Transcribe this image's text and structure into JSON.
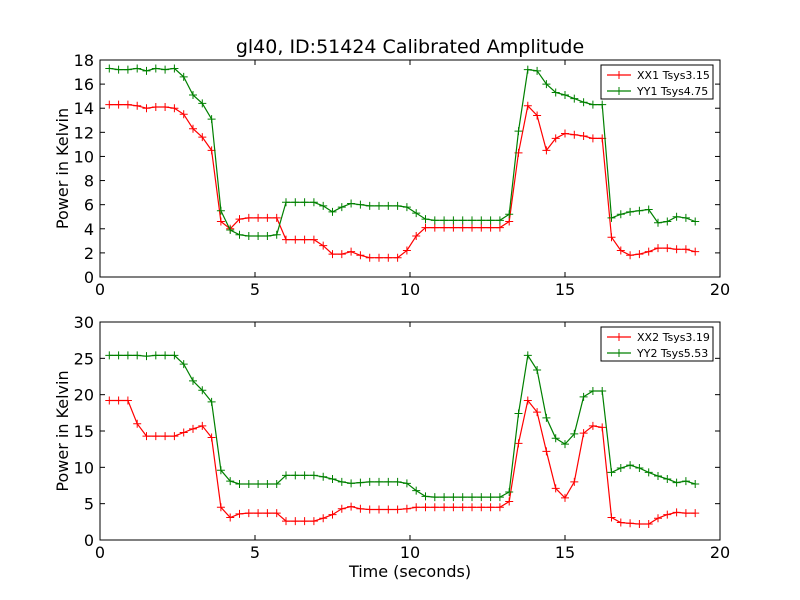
{
  "figure": {
    "title": "gl40, ID:51424 Calibrated Amplitude",
    "xlabel": "Time (seconds)"
  },
  "chart_data": [
    {
      "type": "line",
      "title": "gl40, ID:51424 Calibrated Amplitude",
      "xlabel": "",
      "ylabel": "Power in Kelvin",
      "xlim": [
        0,
        20
      ],
      "ylim": [
        0,
        18
      ],
      "xticks": [
        0,
        5,
        10,
        15,
        20
      ],
      "yticks": [
        0,
        2,
        4,
        6,
        8,
        10,
        12,
        14,
        16,
        18
      ],
      "grid": false,
      "legend_position": "top-right",
      "series": [
        {
          "name": "XX1 Tsys3.15",
          "color": "#ff0000",
          "x": [
            0.3,
            0.6,
            0.9,
            1.2,
            1.5,
            1.8,
            2.1,
            2.4,
            2.7,
            3.0,
            3.3,
            3.6,
            3.9,
            4.2,
            4.5,
            4.8,
            5.1,
            5.4,
            5.7,
            6.0,
            6.3,
            6.6,
            6.9,
            7.2,
            7.5,
            7.8,
            8.1,
            8.4,
            8.7,
            9.0,
            9.3,
            9.6,
            9.9,
            10.2,
            10.5,
            10.8,
            11.1,
            11.4,
            11.7,
            12.0,
            12.3,
            12.6,
            12.9,
            13.2,
            13.5,
            13.8,
            14.1,
            14.4,
            14.7,
            15.0,
            15.3,
            15.6,
            15.9,
            16.2,
            16.5,
            16.8,
            17.1,
            17.4,
            17.7,
            18.0,
            18.3,
            18.6,
            18.9,
            19.2
          ],
          "y": [
            14.3,
            14.3,
            14.3,
            14.2,
            14.0,
            14.1,
            14.1,
            14.0,
            13.5,
            12.3,
            11.6,
            10.5,
            4.6,
            4.0,
            4.8,
            4.9,
            4.9,
            4.9,
            4.9,
            3.1,
            3.1,
            3.1,
            3.1,
            2.6,
            1.9,
            1.9,
            2.1,
            1.8,
            1.6,
            1.6,
            1.6,
            1.6,
            2.2,
            3.4,
            4.1,
            4.1,
            4.1,
            4.1,
            4.1,
            4.1,
            4.1,
            4.1,
            4.1,
            4.6,
            10.3,
            14.2,
            13.4,
            10.5,
            11.5,
            11.9,
            11.8,
            11.7,
            11.5,
            11.5,
            3.3,
            2.2,
            1.8,
            1.9,
            2.1,
            2.4,
            2.4,
            2.3,
            2.3,
            2.1
          ]
        },
        {
          "name": "YY1 Tsys4.75",
          "color": "#008000",
          "x": [
            0.3,
            0.6,
            0.9,
            1.2,
            1.5,
            1.8,
            2.1,
            2.4,
            2.7,
            3.0,
            3.3,
            3.6,
            3.9,
            4.2,
            4.5,
            4.8,
            5.1,
            5.4,
            5.7,
            6.0,
            6.3,
            6.6,
            6.9,
            7.2,
            7.5,
            7.8,
            8.1,
            8.4,
            8.7,
            9.0,
            9.3,
            9.6,
            9.9,
            10.2,
            10.5,
            10.8,
            11.1,
            11.4,
            11.7,
            12.0,
            12.3,
            12.6,
            12.9,
            13.2,
            13.5,
            13.8,
            14.1,
            14.4,
            14.7,
            15.0,
            15.3,
            15.6,
            15.9,
            16.2,
            16.5,
            16.8,
            17.1,
            17.4,
            17.7,
            18.0,
            18.3,
            18.6,
            18.9,
            19.2
          ],
          "y": [
            17.3,
            17.2,
            17.2,
            17.3,
            17.1,
            17.3,
            17.2,
            17.3,
            16.6,
            15.1,
            14.4,
            13.1,
            5.5,
            3.9,
            3.5,
            3.4,
            3.4,
            3.4,
            3.5,
            6.2,
            6.2,
            6.2,
            6.2,
            5.9,
            5.4,
            5.8,
            6.1,
            6.0,
            5.9,
            5.9,
            5.9,
            5.9,
            5.8,
            5.3,
            4.8,
            4.7,
            4.7,
            4.7,
            4.7,
            4.7,
            4.7,
            4.7,
            4.7,
            5.2,
            12.1,
            17.2,
            17.1,
            16.0,
            15.3,
            15.1,
            14.8,
            14.5,
            14.3,
            14.3,
            4.9,
            5.2,
            5.4,
            5.5,
            5.6,
            4.5,
            4.6,
            5.0,
            4.9,
            4.6
          ]
        }
      ]
    },
    {
      "type": "line",
      "title": "",
      "xlabel": "Time (seconds)",
      "ylabel": "Power in Kelvin",
      "xlim": [
        0,
        20
      ],
      "ylim": [
        0,
        30
      ],
      "xticks": [
        0,
        5,
        10,
        15,
        20
      ],
      "yticks": [
        0,
        5,
        10,
        15,
        20,
        25,
        30
      ],
      "grid": false,
      "legend_position": "top-right",
      "series": [
        {
          "name": "XX2 Tsys3.19",
          "color": "#ff0000",
          "x": [
            0.3,
            0.6,
            0.9,
            1.2,
            1.5,
            1.8,
            2.1,
            2.4,
            2.7,
            3.0,
            3.3,
            3.6,
            3.9,
            4.2,
            4.5,
            4.8,
            5.1,
            5.4,
            5.7,
            6.0,
            6.3,
            6.6,
            6.9,
            7.2,
            7.5,
            7.8,
            8.1,
            8.4,
            8.7,
            9.0,
            9.3,
            9.6,
            9.9,
            10.2,
            10.5,
            10.8,
            11.1,
            11.4,
            11.7,
            12.0,
            12.3,
            12.6,
            12.9,
            13.2,
            13.5,
            13.8,
            14.1,
            14.4,
            14.7,
            15.0,
            15.3,
            15.6,
            15.9,
            16.2,
            16.5,
            16.8,
            17.1,
            17.4,
            17.7,
            18.0,
            18.3,
            18.6,
            18.9,
            19.2
          ],
          "y": [
            19.2,
            19.2,
            19.2,
            16.0,
            14.3,
            14.3,
            14.3,
            14.3,
            14.8,
            15.3,
            15.7,
            14.1,
            4.5,
            3.1,
            3.6,
            3.7,
            3.7,
            3.7,
            3.7,
            2.6,
            2.6,
            2.6,
            2.6,
            3.0,
            3.5,
            4.3,
            4.6,
            4.3,
            4.2,
            4.2,
            4.2,
            4.2,
            4.3,
            4.5,
            4.5,
            4.5,
            4.5,
            4.5,
            4.5,
            4.5,
            4.5,
            4.5,
            4.5,
            5.3,
            13.3,
            19.2,
            17.6,
            12.2,
            7.1,
            5.8,
            8.0,
            14.7,
            15.7,
            15.5,
            3.1,
            2.4,
            2.3,
            2.2,
            2.2,
            3.0,
            3.5,
            3.8,
            3.7,
            3.7
          ]
        },
        {
          "name": "YY2 Tsys5.53",
          "color": "#008000",
          "x": [
            0.3,
            0.6,
            0.9,
            1.2,
            1.5,
            1.8,
            2.1,
            2.4,
            2.7,
            3.0,
            3.3,
            3.6,
            3.9,
            4.2,
            4.5,
            4.8,
            5.1,
            5.4,
            5.7,
            6.0,
            6.3,
            6.6,
            6.9,
            7.2,
            7.5,
            7.8,
            8.1,
            8.4,
            8.7,
            9.0,
            9.3,
            9.6,
            9.9,
            10.2,
            10.5,
            10.8,
            11.1,
            11.4,
            11.7,
            12.0,
            12.3,
            12.6,
            12.9,
            13.2,
            13.5,
            13.8,
            14.1,
            14.4,
            14.7,
            15.0,
            15.3,
            15.6,
            15.9,
            16.2,
            16.5,
            16.8,
            17.1,
            17.4,
            17.7,
            18.0,
            18.3,
            18.6,
            18.9,
            19.2
          ],
          "y": [
            25.4,
            25.4,
            25.4,
            25.4,
            25.3,
            25.4,
            25.4,
            25.4,
            24.2,
            21.9,
            20.6,
            19.0,
            9.6,
            8.1,
            7.7,
            7.7,
            7.7,
            7.7,
            7.7,
            8.9,
            8.9,
            8.9,
            8.9,
            8.7,
            8.4,
            8.0,
            7.8,
            7.9,
            8.0,
            8.0,
            8.0,
            8.0,
            7.8,
            6.8,
            6.0,
            5.9,
            5.9,
            5.9,
            5.9,
            5.9,
            5.9,
            5.9,
            5.9,
            6.6,
            17.4,
            25.4,
            23.4,
            16.8,
            14.0,
            13.2,
            14.6,
            19.7,
            20.5,
            20.5,
            9.3,
            9.9,
            10.3,
            9.9,
            9.3,
            8.8,
            8.4,
            7.9,
            8.1,
            7.7
          ]
        }
      ]
    }
  ]
}
